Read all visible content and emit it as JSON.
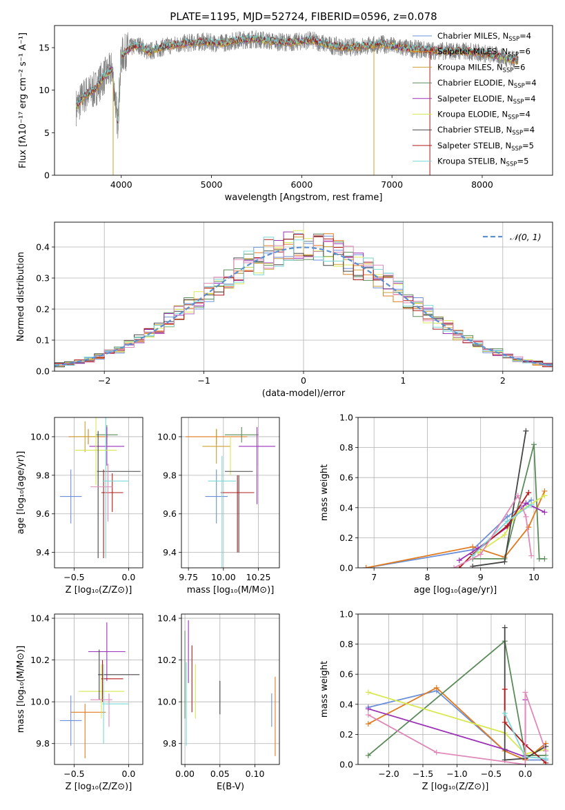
{
  "colors": {
    "Chabrier MILES": "#6a8fd8",
    "Salpeter MILES": "#e07a1f",
    "Kroupa MILES": "#c9a030",
    "Chabrier ELODIE": "#5a8a5a",
    "Salpeter ELODIE": "#9a30b8",
    "Kroupa ELODIE": "#d8e850",
    "Chabrier STELIB": "#444444",
    "Salpeter STELIB": "#b01818",
    "Kroupa STELIB": "#78d8d8",
    "pink": "#e088b8",
    "normal": "#5a8fd0"
  },
  "chart_data": [
    {
      "id": "spectrum",
      "type": "line",
      "title": "PLATE=1195, MJD=52724, FIBERID=0596, z=0.078",
      "xlabel": "wavelength [Angstrom, rest frame]",
      "ylabel": "Flux [fλ10⁻¹⁷ erg cm⁻² s⁻¹ A⁻¹]",
      "xlim": [
        3260,
        8780
      ],
      "ylim": [
        0,
        17.6
      ],
      "xticks": [
        4000,
        5000,
        6000,
        7000,
        8000
      ],
      "yticks": [
        0,
        5,
        10,
        15
      ],
      "legend_position": "right",
      "legend": [
        "Chabrier MILES, N_SSP=4",
        "Salpeter MILES, N_SSP=6",
        "Kroupa MILES, N_SSP=6",
        "Chabrier ELODIE, N_SSP=4",
        "Salpeter ELODIE, N_SSP=4",
        "Kroupa ELODIE, N_SSP=4",
        "Chabrier STELIB, N_SSP=4",
        "Salpeter STELIB, N_SSP=5",
        "Kroupa STELIB, N_SSP=5"
      ],
      "continuum": {
        "x": [
          3500,
          3600,
          3700,
          3800,
          3900,
          3960,
          4000,
          4100,
          4200,
          4300,
          4500,
          4700,
          4900,
          5100,
          5300,
          5500,
          5700,
          5900,
          6100,
          6300,
          6500,
          6700,
          6900,
          7100,
          7300,
          7500,
          7700,
          7900,
          8100,
          8300,
          8400
        ],
        "y": [
          8,
          9.5,
          10,
          11.5,
          12.5,
          6,
          14,
          15,
          15.3,
          14.5,
          15.2,
          15.5,
          15.7,
          15.5,
          15.9,
          16,
          15.7,
          15.6,
          15.9,
          15.3,
          15,
          15.2,
          15.4,
          15,
          14.8,
          14.6,
          14.6,
          14.5,
          14.2,
          13.7,
          13.5
        ]
      }
    },
    {
      "id": "residuals",
      "type": "histogram",
      "xlabel": "(data-model)/error",
      "ylabel": "Normed distribution",
      "xlim": [
        -2.5,
        2.5
      ],
      "ylim": [
        0,
        0.48
      ],
      "xticks": [
        -2,
        -1,
        0,
        1,
        2
      ],
      "yticks": [
        0.0,
        0.1,
        0.2,
        0.3,
        0.4
      ],
      "grid": true,
      "legend": "𝒩(0, 1)",
      "bin_width": 0.1,
      "bin_start": -2.5
    },
    {
      "id": "age_vs_Z",
      "type": "errorbar",
      "xlabel": "Z [log₁₀(Z/Z⊙)]",
      "ylabel": "age  [log₁₀(age/yr)]",
      "xlim": [
        -0.68,
        0.13
      ],
      "ylim": [
        9.32,
        10.1
      ],
      "xticks": [
        -0.5,
        0.0
      ],
      "yticks": [
        9.4,
        9.6,
        9.8,
        10.0
      ],
      "grid": true,
      "points": [
        {
          "c": "Chabrier MILES",
          "x": -0.53,
          "xe": 0.1,
          "y": 9.69,
          "ye": 0.14
        },
        {
          "c": "Salpeter MILES",
          "x": -0.37,
          "xe": 0.18,
          "y": 10.0,
          "ye": 0.04
        },
        {
          "c": "Kroupa MILES",
          "x": -0.4,
          "xe": 0.13,
          "y": 10.0,
          "ye": 0.08
        },
        {
          "c": "Chabrier ELODIE",
          "x": -0.2,
          "xe": 0.1,
          "y": 10.01,
          "ye": 0.05
        },
        {
          "c": "Salpeter ELODIE",
          "x": -0.2,
          "xe": 0.16,
          "y": 9.95,
          "ye": 0.1
        },
        {
          "c": "Kroupa ELODIE",
          "x": -0.3,
          "xe": 0.19,
          "y": 9.93,
          "ye": 0.18
        },
        {
          "c": "Chabrier STELIB",
          "x": -0.28,
          "xe": 0.0,
          "y": 9.7,
          "ye": 0.33
        },
        {
          "c": "Chabrier STELIB",
          "x": -0.09,
          "xe": 0.2,
          "y": 9.82,
          "ye": 0.0
        },
        {
          "c": "Salpeter STELIB",
          "x": -0.15,
          "xe": 0.1,
          "y": 9.71,
          "ye": 0.1
        },
        {
          "c": "Salpeter STELIB",
          "x": -0.23,
          "xe": 0.0,
          "y": 9.6,
          "ye": 0.23
        },
        {
          "c": "pink",
          "x": -0.25,
          "xe": 0.1,
          "y": 9.74,
          "ye": 0.0
        },
        {
          "c": "pink",
          "x": -0.19,
          "xe": 0.0,
          "y": 9.71,
          "ye": 0.15
        },
        {
          "c": "Kroupa STELIB",
          "x": -0.12,
          "xe": 0.12,
          "y": 9.77,
          "ye": 0.0
        },
        {
          "c": "Kroupa STELIB",
          "x": -0.21,
          "xe": 0.0,
          "y": 9.77,
          "ye": 0.4
        }
      ]
    },
    {
      "id": "age_vs_mass",
      "type": "errorbar",
      "xlabel": "mass [log₁₀(M/M⊙)]",
      "xlim": [
        9.7,
        10.4
      ],
      "ylim": [
        9.32,
        10.1
      ],
      "xticks": [
        9.75,
        10.0,
        10.25
      ],
      "yticks": [
        9.4,
        9.6,
        9.8,
        10.0
      ],
      "grid": true,
      "points": [
        {
          "c": "Chabrier MILES",
          "x": 9.95,
          "xe": 0.08,
          "y": 9.69,
          "ye": 0.14
        },
        {
          "c": "Salpeter MILES",
          "x": 9.95,
          "xe": 0.22,
          "y": 10.0,
          "ye": 0.04
        },
        {
          "c": "Kroupa MILES",
          "x": 9.95,
          "xe": 0.1,
          "y": 9.95,
          "ye": 0.09
        },
        {
          "c": "Chabrier ELODIE",
          "x": 10.13,
          "xe": 0.12,
          "y": 10.01,
          "ye": 0.04
        },
        {
          "c": "Salpeter ELODIE",
          "x": 10.24,
          "xe": 0.13,
          "y": 9.95,
          "ye": 0.1
        },
        {
          "c": "Salpeter ELODIE",
          "x": 10.24,
          "xe": 0.0,
          "y": 9.8,
          "ye": 0.15
        },
        {
          "c": "Kroupa ELODIE",
          "x": 10.05,
          "xe": 0.0,
          "y": 9.9,
          "ye": 0.1
        },
        {
          "c": "Chabrier STELIB",
          "x": 10.11,
          "xe": 0.1,
          "y": 9.82,
          "ye": 0.0
        },
        {
          "c": "Chabrier STELIB",
          "x": 10.11,
          "xe": 0.0,
          "y": 9.6,
          "ye": 0.2
        },
        {
          "c": "Salpeter STELIB",
          "x": 10.1,
          "xe": 0.12,
          "y": 9.71,
          "ye": 0.0
        },
        {
          "c": "Salpeter STELIB",
          "x": 10.1,
          "xe": 0.0,
          "y": 9.6,
          "ye": 0.2
        },
        {
          "c": "Kroupa STELIB",
          "x": 9.99,
          "xe": 0.1,
          "y": 9.77,
          "ye": 0.0
        },
        {
          "c": "Kroupa STELIB",
          "x": 9.99,
          "xe": 0.0,
          "y": 9.6,
          "ye": 0.3
        }
      ]
    },
    {
      "id": "massweight_vs_age",
      "type": "line",
      "xlabel": "age  [log₁₀(age/yr)]",
      "ylabel": "mass weight",
      "xlim": [
        6.7,
        10.35
      ],
      "ylim": [
        0,
        1.0
      ],
      "xticks": [
        7,
        8,
        9,
        10
      ],
      "yticks": [
        0.0,
        0.2,
        0.4,
        0.6,
        0.8,
        1.0
      ],
      "grid": true,
      "series": [
        {
          "c": "Chabrier MILES",
          "x": [
            6.85,
            8.85,
            9.5,
            9.95
          ],
          "y": [
            0.0,
            0.12,
            0.34,
            0.45
          ]
        },
        {
          "c": "Salpeter MILES",
          "x": [
            6.85,
            8.85,
            9.45,
            9.9,
            10.2
          ],
          "y": [
            0.0,
            0.14,
            0.07,
            0.27,
            0.51
          ]
        },
        {
          "c": "Chabrier ELODIE",
          "x": [
            8.85,
            9.45,
            10.0,
            10.1,
            10.2
          ],
          "y": [
            0.06,
            0.06,
            0.82,
            0.06,
            0.06
          ]
        },
        {
          "c": "Salpeter ELODIE",
          "x": [
            8.6,
            8.95,
            9.5,
            9.85,
            10.2
          ],
          "y": [
            0.05,
            0.13,
            0.27,
            0.43,
            0.37
          ]
        },
        {
          "c": "Kroupa ELODIE",
          "x": [
            8.95,
            9.45,
            9.7,
            10.2
          ],
          "y": [
            0.1,
            0.22,
            0.37,
            0.48
          ]
        },
        {
          "c": "Chabrier STELIB",
          "x": [
            8.85,
            9.45,
            9.85
          ],
          "y": [
            0.01,
            0.04,
            0.91
          ]
        },
        {
          "c": "Salpeter STELIB",
          "x": [
            8.6,
            8.85,
            9.5,
            9.9
          ],
          "y": [
            0.0,
            0.09,
            0.28,
            0.5
          ]
        },
        {
          "c": "Kroupa STELIB",
          "x": [
            8.85,
            9.5,
            9.95
          ],
          "y": [
            0.08,
            0.31,
            0.42
          ]
        },
        {
          "c": "pink",
          "x": [
            8.5,
            9.0,
            9.7,
            9.85,
            9.95
          ],
          "y": [
            0.0,
            0.09,
            0.48,
            0.34,
            0.08
          ]
        }
      ]
    },
    {
      "id": "mass_vs_Z",
      "type": "errorbar",
      "xlabel": "Z [log₁₀(Z/Z⊙)]",
      "ylabel": "mass [log₁₀(M/M⊙)]",
      "xlim": [
        -0.68,
        0.13
      ],
      "ylim": [
        9.7,
        10.42
      ],
      "xticks": [
        -0.5,
        0.0
      ],
      "yticks": [
        9.8,
        10.0,
        10.2,
        10.4
      ],
      "grid": true,
      "points": [
        {
          "c": "Chabrier MILES",
          "x": -0.53,
          "xe": 0.1,
          "y": 9.91,
          "ye": 0.12
        },
        {
          "c": "Salpeter MILES",
          "x": -0.37,
          "xe": 0.16,
          "y": 9.95,
          "ye": 0.0
        },
        {
          "c": "Salpeter MILES",
          "x": -0.4,
          "xe": 0.0,
          "y": 9.86,
          "ye": 0.13
        },
        {
          "c": "Kroupa ELODIE",
          "x": -0.25,
          "xe": 0.21,
          "y": 10.05,
          "ye": 0.13
        },
        {
          "c": "Salpeter ELODIE",
          "x": -0.2,
          "xe": 0.17,
          "y": 10.24,
          "ye": 0.14
        },
        {
          "c": "Chabrier STELIB",
          "x": -0.09,
          "xe": 0.19,
          "y": 10.13,
          "ye": 0.0
        },
        {
          "c": "Chabrier STELIB",
          "x": -0.27,
          "xe": 0.0,
          "y": 10.13,
          "ye": 0.12
        },
        {
          "c": "Salpeter STELIB",
          "x": -0.15,
          "xe": 0.1,
          "y": 10.11,
          "ye": 0.0
        },
        {
          "c": "Salpeter STELIB",
          "x": -0.24,
          "xe": 0.0,
          "y": 10.1,
          "ye": 0.1
        },
        {
          "c": "pink",
          "x": -0.25,
          "xe": 0.1,
          "y": 10.01,
          "ye": 0.0
        },
        {
          "c": "pink",
          "x": -0.18,
          "xe": 0.0,
          "y": 9.96,
          "ye": 0.08
        },
        {
          "c": "Kroupa STELIB",
          "x": -0.12,
          "xe": 0.12,
          "y": 9.99,
          "ye": 0.0
        },
        {
          "c": "Kroupa STELIB",
          "x": -0.23,
          "xe": 0.0,
          "y": 9.99,
          "ye": 0.19
        }
      ]
    },
    {
      "id": "mass_vs_EBV",
      "type": "errorbar",
      "xlabel": "E(B-V)",
      "xlim": [
        -0.005,
        0.135
      ],
      "ylim": [
        9.7,
        10.42
      ],
      "xticks": [
        0.0,
        0.05,
        0.1
      ],
      "yticks": [
        9.8,
        10.0,
        10.2,
        10.4
      ],
      "grid": true,
      "points": [
        {
          "c": "Chabrier ELODIE",
          "x": 0.0,
          "xe": 0.0,
          "y": 10.13,
          "ye": 0.21
        },
        {
          "c": "Salpeter ELODIE",
          "x": 0.005,
          "xe": 0.0,
          "y": 10.24,
          "ye": 0.15
        },
        {
          "c": "Salpeter STELIB",
          "x": 0.01,
          "xe": 0.0,
          "y": 10.11,
          "ye": 0.16
        },
        {
          "c": "Kroupa ELODIE",
          "x": 0.015,
          "xe": 0.0,
          "y": 10.05,
          "ye": 0.13
        },
        {
          "c": "Kroupa STELIB",
          "x": 0.002,
          "xe": 0.0,
          "y": 9.99,
          "ye": 0.2
        },
        {
          "c": "Chabrier STELIB",
          "x": 0.05,
          "xe": 0.0,
          "y": 10.02,
          "ye": 0.08
        },
        {
          "c": "Chabrier MILES",
          "x": 0.124,
          "xe": 0.0,
          "y": 9.96,
          "ye": 0.08
        },
        {
          "c": "Salpeter MILES",
          "x": 0.129,
          "xe": 0.0,
          "y": 9.93,
          "ye": 0.19
        }
      ]
    },
    {
      "id": "massweight_vs_Z",
      "type": "line",
      "xlabel": "Z [log₁₀(Z/Z⊙)]",
      "ylabel": "mass weight",
      "xlim": [
        -2.45,
        0.4
      ],
      "ylim": [
        0,
        1.0
      ],
      "xticks": [
        -2.0,
        -1.5,
        -1.0,
        -0.5,
        0.0
      ],
      "yticks": [
        0.0,
        0.2,
        0.4,
        0.6,
        0.8,
        1.0
      ],
      "grid": true,
      "series": [
        {
          "c": "Chabrier MILES",
          "x": [
            -2.3,
            -1.3,
            -0.3,
            0.0,
            0.3
          ],
          "y": [
            0.38,
            0.49,
            0.09,
            0.03,
            0.03
          ]
        },
        {
          "c": "Salpeter MILES",
          "x": [
            -2.3,
            -1.3,
            -0.3,
            0.0,
            0.3
          ],
          "y": [
            0.27,
            0.51,
            0.09,
            0.03,
            0.14
          ]
        },
        {
          "c": "Chabrier ELODIE",
          "x": [
            -2.3,
            -0.3,
            0.0,
            0.3
          ],
          "y": [
            0.06,
            0.82,
            0.06,
            0.06
          ]
        },
        {
          "c": "Salpeter ELODIE",
          "x": [
            -2.3,
            -0.3,
            0.0,
            0.0
          ],
          "y": [
            0.37,
            0.1,
            0.05,
            0.43
          ]
        },
        {
          "c": "Kroupa ELODIE",
          "x": [
            -2.3,
            -0.3,
            0.0,
            0.3
          ],
          "y": [
            0.48,
            0.21,
            0.07,
            0.1
          ]
        },
        {
          "c": "Chabrier STELIB",
          "x": [
            -0.3,
            -0.3,
            0.0,
            0.3
          ],
          "y": [
            0.91,
            0.03,
            0.04,
            0.12
          ]
        },
        {
          "c": "Salpeter STELIB",
          "x": [
            -0.3,
            -0.3,
            0.0,
            0.3
          ],
          "y": [
            0.5,
            0.28,
            0.13,
            0.01
          ]
        },
        {
          "c": "Kroupa STELIB",
          "x": [
            -0.3,
            0.0,
            0.3
          ],
          "y": [
            0.34,
            0.05,
            0.04
          ]
        },
        {
          "c": "pink",
          "x": [
            -2.3,
            -1.3,
            0.0,
            0.0,
            0.3
          ],
          "y": [
            0.33,
            0.08,
            0.0,
            0.48,
            0.09
          ]
        }
      ]
    }
  ]
}
